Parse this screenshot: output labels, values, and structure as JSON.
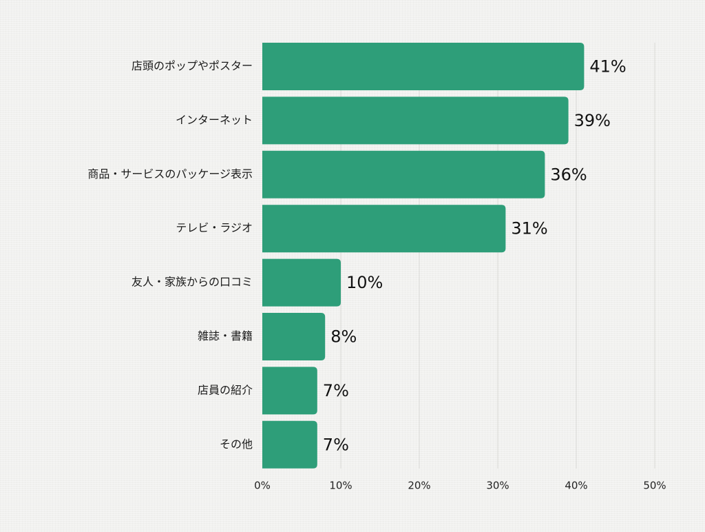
{
  "chart_data": {
    "type": "bar",
    "orientation": "horizontal",
    "categories": [
      "店頭のポップやポスター",
      "インターネット",
      "商品・サービスのパッケージ表示",
      "テレビ・ラジオ",
      "友人・家族からの口コミ",
      "雑誌・書籍",
      "店員の紹介",
      "その他"
    ],
    "values": [
      41,
      39,
      36,
      31,
      10,
      8,
      7,
      7
    ],
    "value_labels": [
      "41%",
      "39%",
      "36%",
      "31%",
      "10%",
      "8%",
      "7%",
      "7%"
    ],
    "x_ticks": [
      0,
      10,
      20,
      30,
      40,
      50
    ],
    "x_tick_labels": [
      "0%",
      "10%",
      "20%",
      "30%",
      "40%",
      "50%"
    ],
    "xlim": [
      0,
      50
    ],
    "grid": true,
    "legend": "none",
    "title": "",
    "xlabel": "",
    "ylabel": "",
    "colors": {
      "bar": "#2e9e79",
      "grid": "#d9d9d6",
      "text": "#1a1a1a",
      "background": "#f1f1ef"
    }
  }
}
